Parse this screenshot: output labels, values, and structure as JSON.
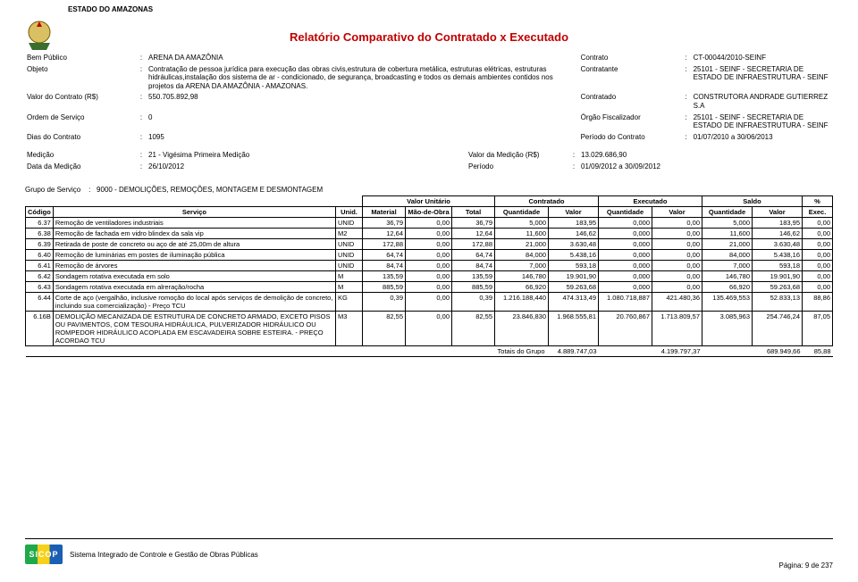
{
  "colors": {
    "accent": "#c00000",
    "rule": "#000000",
    "logo_g": "#1fa94a",
    "logo_y": "#f7d117",
    "logo_b": "#1a5fb4"
  },
  "header": {
    "state": "ESTADO DO AMAZONAS",
    "title": "Relatório Comparativo do Contratado x Executado"
  },
  "meta": {
    "rows": [
      {
        "l": "Bem Público",
        "v": "ARENA DA AMAZÔNIA",
        "l2": "Contrato",
        "v2": "CT-00044/2010-SEINF"
      },
      {
        "l": "Objeto",
        "v": "Contratação de pessoa jurídica para execução das obras civis,estrutura de cobertura metálica, estruturas elétricas, estruturas hidráulicas,instalação dos sistema de ar - condicionado, de segurança, broadcasting e todos os demais ambientes contidos nos projetos da ARENA DA AMAZÔNIA - AMAZONAS.",
        "l2": "Contratante",
        "v2": "25101 - SEINF - SECRETARIA DE ESTADO DE INFRAESTRUTURA - SEINF"
      },
      {
        "l": "Valor do Contrato (R$)",
        "v": "550.705.892,98",
        "l2": "Contratado",
        "v2": "CONSTRUTORA ANDRADE GUTIERREZ S.A"
      },
      {
        "l": "Ordem de Serviço",
        "v": "0",
        "l2": "Órgão Fiscalizador",
        "v2": "25101 - SEINF - SECRETARIA DE ESTADO DE INFRAESTRUTURA - SEINF"
      },
      {
        "l": "Dias do Contrato",
        "v": "1095",
        "l2": "Período do Contrato",
        "v2": "01/07/2010 a 30/06/2013"
      }
    ],
    "rows2": [
      {
        "l": "Medição",
        "v": "21 - Vigésima Primeira Medição",
        "l2": "Valor da Medição (R$)",
        "v2": "13.029.686,90"
      },
      {
        "l": "Data da Medição",
        "v": "26/10/2012",
        "l2": "Período",
        "v2": "01/09/2012 a 30/09/2012"
      }
    ]
  },
  "group": {
    "label": "Grupo de Serviço",
    "value": "9000 - DEMOLIÇÕES, REMOÇÕES, MONTAGEM E DESMONTAGEM"
  },
  "table": {
    "head_top": {
      "spacer": "",
      "valor_unitario": "Valor Unitário",
      "contratado": "Contratado",
      "executado": "Executado",
      "saldo": "Saldo",
      "pct": "%"
    },
    "head": {
      "codigo": "Código",
      "servico": "Serviço",
      "unid": "Unid.",
      "material": "Material",
      "mao": "Mão-de-Obra",
      "total": "Total",
      "cq": "Quantidade",
      "cv": "Valor",
      "eq": "Quantidade",
      "ev": "Valor",
      "sq": "Quantidade",
      "sv": "Valor",
      "exec": "Exec."
    },
    "rows": [
      {
        "c": "6.37",
        "d": "Remoção de ventiladores industriais",
        "u": "UNID",
        "m": "36,79",
        "mo": "0,00",
        "t": "36,79",
        "cq": "5,000",
        "cv": "183,95",
        "eq": "0,000",
        "ev": "0,00",
        "sq": "5,000",
        "sv": "183,95",
        "x": "0,00"
      },
      {
        "c": "6.38",
        "d": "Remoção de fachada em vidro blindex da sala vip",
        "u": "M2",
        "m": "12,64",
        "mo": "0,00",
        "t": "12,64",
        "cq": "11,600",
        "cv": "146,62",
        "eq": "0,000",
        "ev": "0,00",
        "sq": "11,600",
        "sv": "146,62",
        "x": "0,00"
      },
      {
        "c": "6.39",
        "d": "Retirada de poste de concreto ou aço de até 25,00m de altura",
        "u": "UNID",
        "m": "172,88",
        "mo": "0,00",
        "t": "172,88",
        "cq": "21,000",
        "cv": "3.630,48",
        "eq": "0,000",
        "ev": "0,00",
        "sq": "21,000",
        "sv": "3.630,48",
        "x": "0,00"
      },
      {
        "c": "6.40",
        "d": "Remoção de luminárias em postes de iluminação pública",
        "u": "UNID",
        "m": "64,74",
        "mo": "0,00",
        "t": "64,74",
        "cq": "84,000",
        "cv": "5.438,16",
        "eq": "0,000",
        "ev": "0,00",
        "sq": "84,000",
        "sv": "5.438,16",
        "x": "0,00"
      },
      {
        "c": "6.41",
        "d": "Remoção de árvores",
        "u": "UNID",
        "m": "84,74",
        "mo": "0,00",
        "t": "84,74",
        "cq": "7,000",
        "cv": "593,18",
        "eq": "0,000",
        "ev": "0,00",
        "sq": "7,000",
        "sv": "593,18",
        "x": "0,00"
      },
      {
        "c": "6.42",
        "d": "Sondagem rotativa executada em solo",
        "u": "M",
        "m": "135,59",
        "mo": "0,00",
        "t": "135,59",
        "cq": "146,780",
        "cv": "19.901,90",
        "eq": "0,000",
        "ev": "0,00",
        "sq": "146,780",
        "sv": "19.901,90",
        "x": "0,00"
      },
      {
        "c": "6.43",
        "d": "Sondagem rotativa executada em alreração/rocha",
        "u": "M",
        "m": "885,59",
        "mo": "0,00",
        "t": "885,59",
        "cq": "66,920",
        "cv": "59.263,68",
        "eq": "0,000",
        "ev": "0,00",
        "sq": "66,920",
        "sv": "59.263,68",
        "x": "0,00"
      },
      {
        "c": "6.44",
        "d": "Corte de aço (vergalhão, inclusive romoção do local após serviços de demolição de concreto, incluindo sua comercialização) - Preço TCU",
        "u": "KG",
        "m": "0,39",
        "mo": "0,00",
        "t": "0,39",
        "cq": "1.216.188,440",
        "cv": "474.313,49",
        "eq": "1.080.718,887",
        "ev": "421.480,36",
        "sq": "135.469,553",
        "sv": "52.833,13",
        "x": "88,86"
      },
      {
        "c": "6.16B",
        "d": "DEMOLIÇÃO MECANIZADA DE ESTRUTURA DE CONCRETO ARMADO, EXCETO PISOS OU PAVIMENTOS, COM TESOURA HIDRÁULICA, PULVERIZADOR HIDRÁULICO OU ROMPEDOR HIDRÁULICO ACOPLADA EM ESCAVADEIRA SOBRE ESTEIRA. - PREÇO ACORDAO TCU",
        "u": "M3",
        "m": "82,55",
        "mo": "0,00",
        "t": "82,55",
        "cq": "23.846,830",
        "cv": "1.968.555,81",
        "eq": "20.760,867",
        "ev": "1.713.809,57",
        "sq": "3.085,963",
        "sv": "254.746,24",
        "x": "87,05"
      }
    ],
    "totals": {
      "label": "Totais do Grupo",
      "cv": "4.889.747,03",
      "ev": "4.199.797,37",
      "sv": "689.949,66",
      "x": "85,88"
    }
  },
  "footer": {
    "brand_abbr": "SICOP",
    "brand_text": "Sistema Integrado de Controle e Gestão de Obras Públicas",
    "page_label": "Página: 9 de  237"
  }
}
